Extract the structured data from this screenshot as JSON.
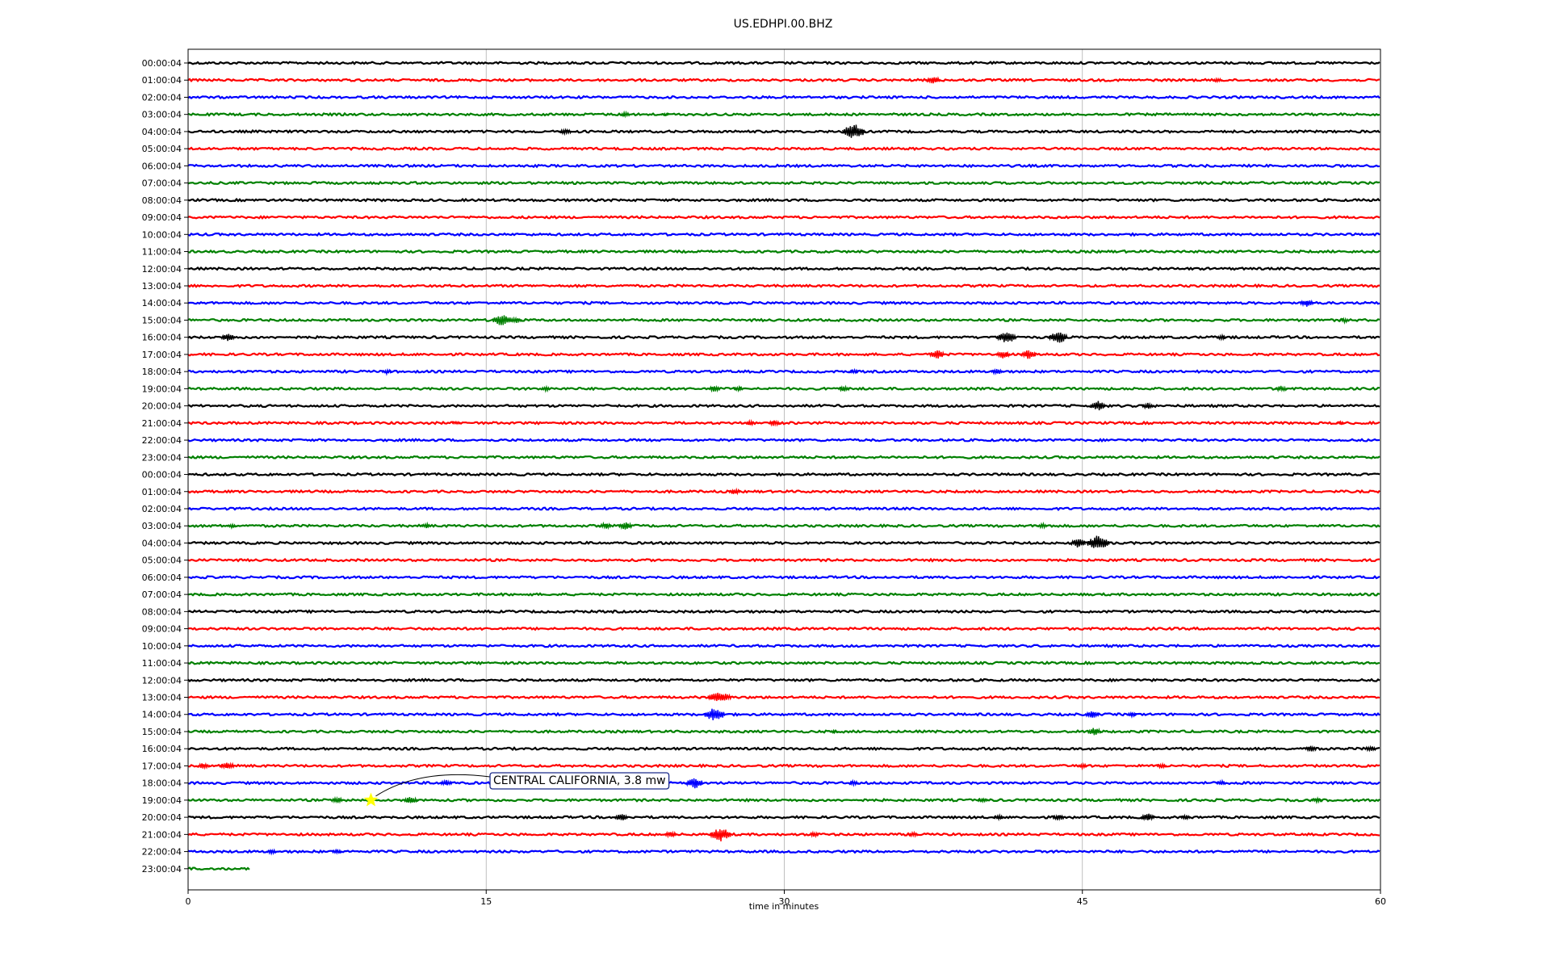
{
  "chart_data": {
    "type": "line",
    "title": "US.EDHPI.00.BHZ",
    "xlabel": "time in minutes",
    "ylabel": "",
    "xlim": [
      0,
      60
    ],
    "x_ticks": [
      0,
      15,
      30,
      45,
      60
    ],
    "x_tick_labels": [
      "0",
      "15",
      "30",
      "45",
      "60"
    ],
    "grid": "vertical",
    "row_colors": [
      "#000000",
      "#ff0000",
      "#0000ff",
      "#008000"
    ],
    "rows": [
      {
        "label": "00:00:04",
        "events": []
      },
      {
        "label": "01:00:04",
        "events": [
          [
            37.5,
            5
          ],
          [
            51.8,
            3
          ]
        ]
      },
      {
        "label": "02:00:04",
        "events": []
      },
      {
        "label": "03:00:04",
        "events": [
          [
            22.0,
            3
          ],
          [
            24.0,
            2
          ]
        ]
      },
      {
        "label": "04:00:04",
        "events": [
          [
            19.0,
            4
          ],
          [
            33.5,
            10
          ]
        ]
      },
      {
        "label": "05:00:04",
        "events": []
      },
      {
        "label": "06:00:04",
        "events": []
      },
      {
        "label": "07:00:04",
        "events": []
      },
      {
        "label": "08:00:04",
        "events": []
      },
      {
        "label": "09:00:04",
        "events": []
      },
      {
        "label": "10:00:04",
        "events": []
      },
      {
        "label": "11:00:04",
        "events": []
      },
      {
        "label": "12:00:04",
        "events": []
      },
      {
        "label": "13:00:04",
        "events": []
      },
      {
        "label": "14:00:04",
        "events": [
          [
            56.3,
            5
          ]
        ]
      },
      {
        "label": "15:00:04",
        "events": [
          [
            15.8,
            8
          ],
          [
            16.5,
            4
          ],
          [
            58.2,
            3
          ]
        ]
      },
      {
        "label": "16:00:04",
        "events": [
          [
            2.0,
            5
          ],
          [
            41.2,
            8
          ],
          [
            43.8,
            8
          ],
          [
            52.0,
            3
          ]
        ]
      },
      {
        "label": "17:00:04",
        "events": [
          [
            37.7,
            6
          ],
          [
            41.0,
            5
          ],
          [
            42.3,
            6
          ]
        ]
      },
      {
        "label": "18:00:04",
        "events": [
          [
            10.0,
            3
          ],
          [
            33.5,
            3
          ],
          [
            40.7,
            4
          ]
        ]
      },
      {
        "label": "19:00:04",
        "events": [
          [
            18.0,
            3
          ],
          [
            26.5,
            4
          ],
          [
            27.7,
            3
          ],
          [
            33.0,
            4
          ],
          [
            55.0,
            4
          ]
        ]
      },
      {
        "label": "20:00:04",
        "events": [
          [
            45.8,
            6
          ],
          [
            48.3,
            4
          ]
        ]
      },
      {
        "label": "21:00:04",
        "events": [
          [
            13.5,
            2
          ],
          [
            28.3,
            3
          ],
          [
            29.5,
            4
          ],
          [
            58.0,
            2
          ]
        ]
      },
      {
        "label": "22:00:04",
        "events": []
      },
      {
        "label": "23:00:04",
        "events": []
      },
      {
        "label": "00:00:04",
        "events": []
      },
      {
        "label": "01:00:04",
        "events": [
          [
            27.5,
            4
          ]
        ]
      },
      {
        "label": "02:00:04",
        "events": []
      },
      {
        "label": "03:00:04",
        "events": [
          [
            2.2,
            3
          ],
          [
            12.0,
            3
          ],
          [
            21.0,
            4
          ],
          [
            22.0,
            5
          ],
          [
            43.0,
            3
          ]
        ]
      },
      {
        "label": "04:00:04",
        "events": [
          [
            44.8,
            6
          ],
          [
            45.8,
            10
          ]
        ]
      },
      {
        "label": "05:00:04",
        "events": []
      },
      {
        "label": "06:00:04",
        "events": []
      },
      {
        "label": "07:00:04",
        "events": []
      },
      {
        "label": "08:00:04",
        "events": []
      },
      {
        "label": "09:00:04",
        "events": []
      },
      {
        "label": "10:00:04",
        "events": []
      },
      {
        "label": "11:00:04",
        "events": []
      },
      {
        "label": "12:00:04",
        "events": []
      },
      {
        "label": "13:00:04",
        "events": [
          [
            26.6,
            7
          ],
          [
            27.0,
            5
          ]
        ]
      },
      {
        "label": "14:00:04",
        "events": [
          [
            26.5,
            9
          ],
          [
            45.5,
            5
          ],
          [
            47.5,
            3
          ]
        ]
      },
      {
        "label": "15:00:04",
        "events": [
          [
            45.6,
            5
          ],
          [
            32.5,
            2
          ]
        ]
      },
      {
        "label": "16:00:04",
        "events": [
          [
            56.5,
            4
          ],
          [
            59.5,
            4
          ]
        ]
      },
      {
        "label": "17:00:04",
        "events": [
          [
            0.8,
            4
          ],
          [
            2.0,
            5
          ],
          [
            45.0,
            3
          ],
          [
            49.0,
            3
          ]
        ]
      },
      {
        "label": "18:00:04",
        "events": [
          [
            13.0,
            4
          ],
          [
            25.5,
            7
          ],
          [
            33.5,
            3
          ],
          [
            52.0,
            3
          ]
        ]
      },
      {
        "label": "19:00:04",
        "events": [
          [
            7.5,
            4
          ],
          [
            11.2,
            5
          ],
          [
            40.0,
            3
          ],
          [
            56.8,
            3
          ]
        ]
      },
      {
        "label": "20:00:04",
        "events": [
          [
            21.8,
            5
          ],
          [
            40.8,
            3
          ],
          [
            43.8,
            4
          ],
          [
            48.3,
            5
          ],
          [
            50.2,
            3
          ]
        ]
      },
      {
        "label": "21:00:04",
        "events": [
          [
            24.3,
            4
          ],
          [
            26.8,
            9
          ],
          [
            31.5,
            3
          ],
          [
            36.5,
            3
          ]
        ]
      },
      {
        "label": "22:00:04",
        "events": [
          [
            4.2,
            3
          ],
          [
            7.5,
            3
          ]
        ]
      },
      {
        "label": "23:00:04",
        "events": [],
        "end": 3.1
      }
    ],
    "annotations": [
      {
        "text": "CENTRAL CALIFORNIA, 3.8 mw",
        "row": 43,
        "x": 9.2,
        "marker": "star",
        "marker_color": "#ffff00"
      }
    ]
  }
}
